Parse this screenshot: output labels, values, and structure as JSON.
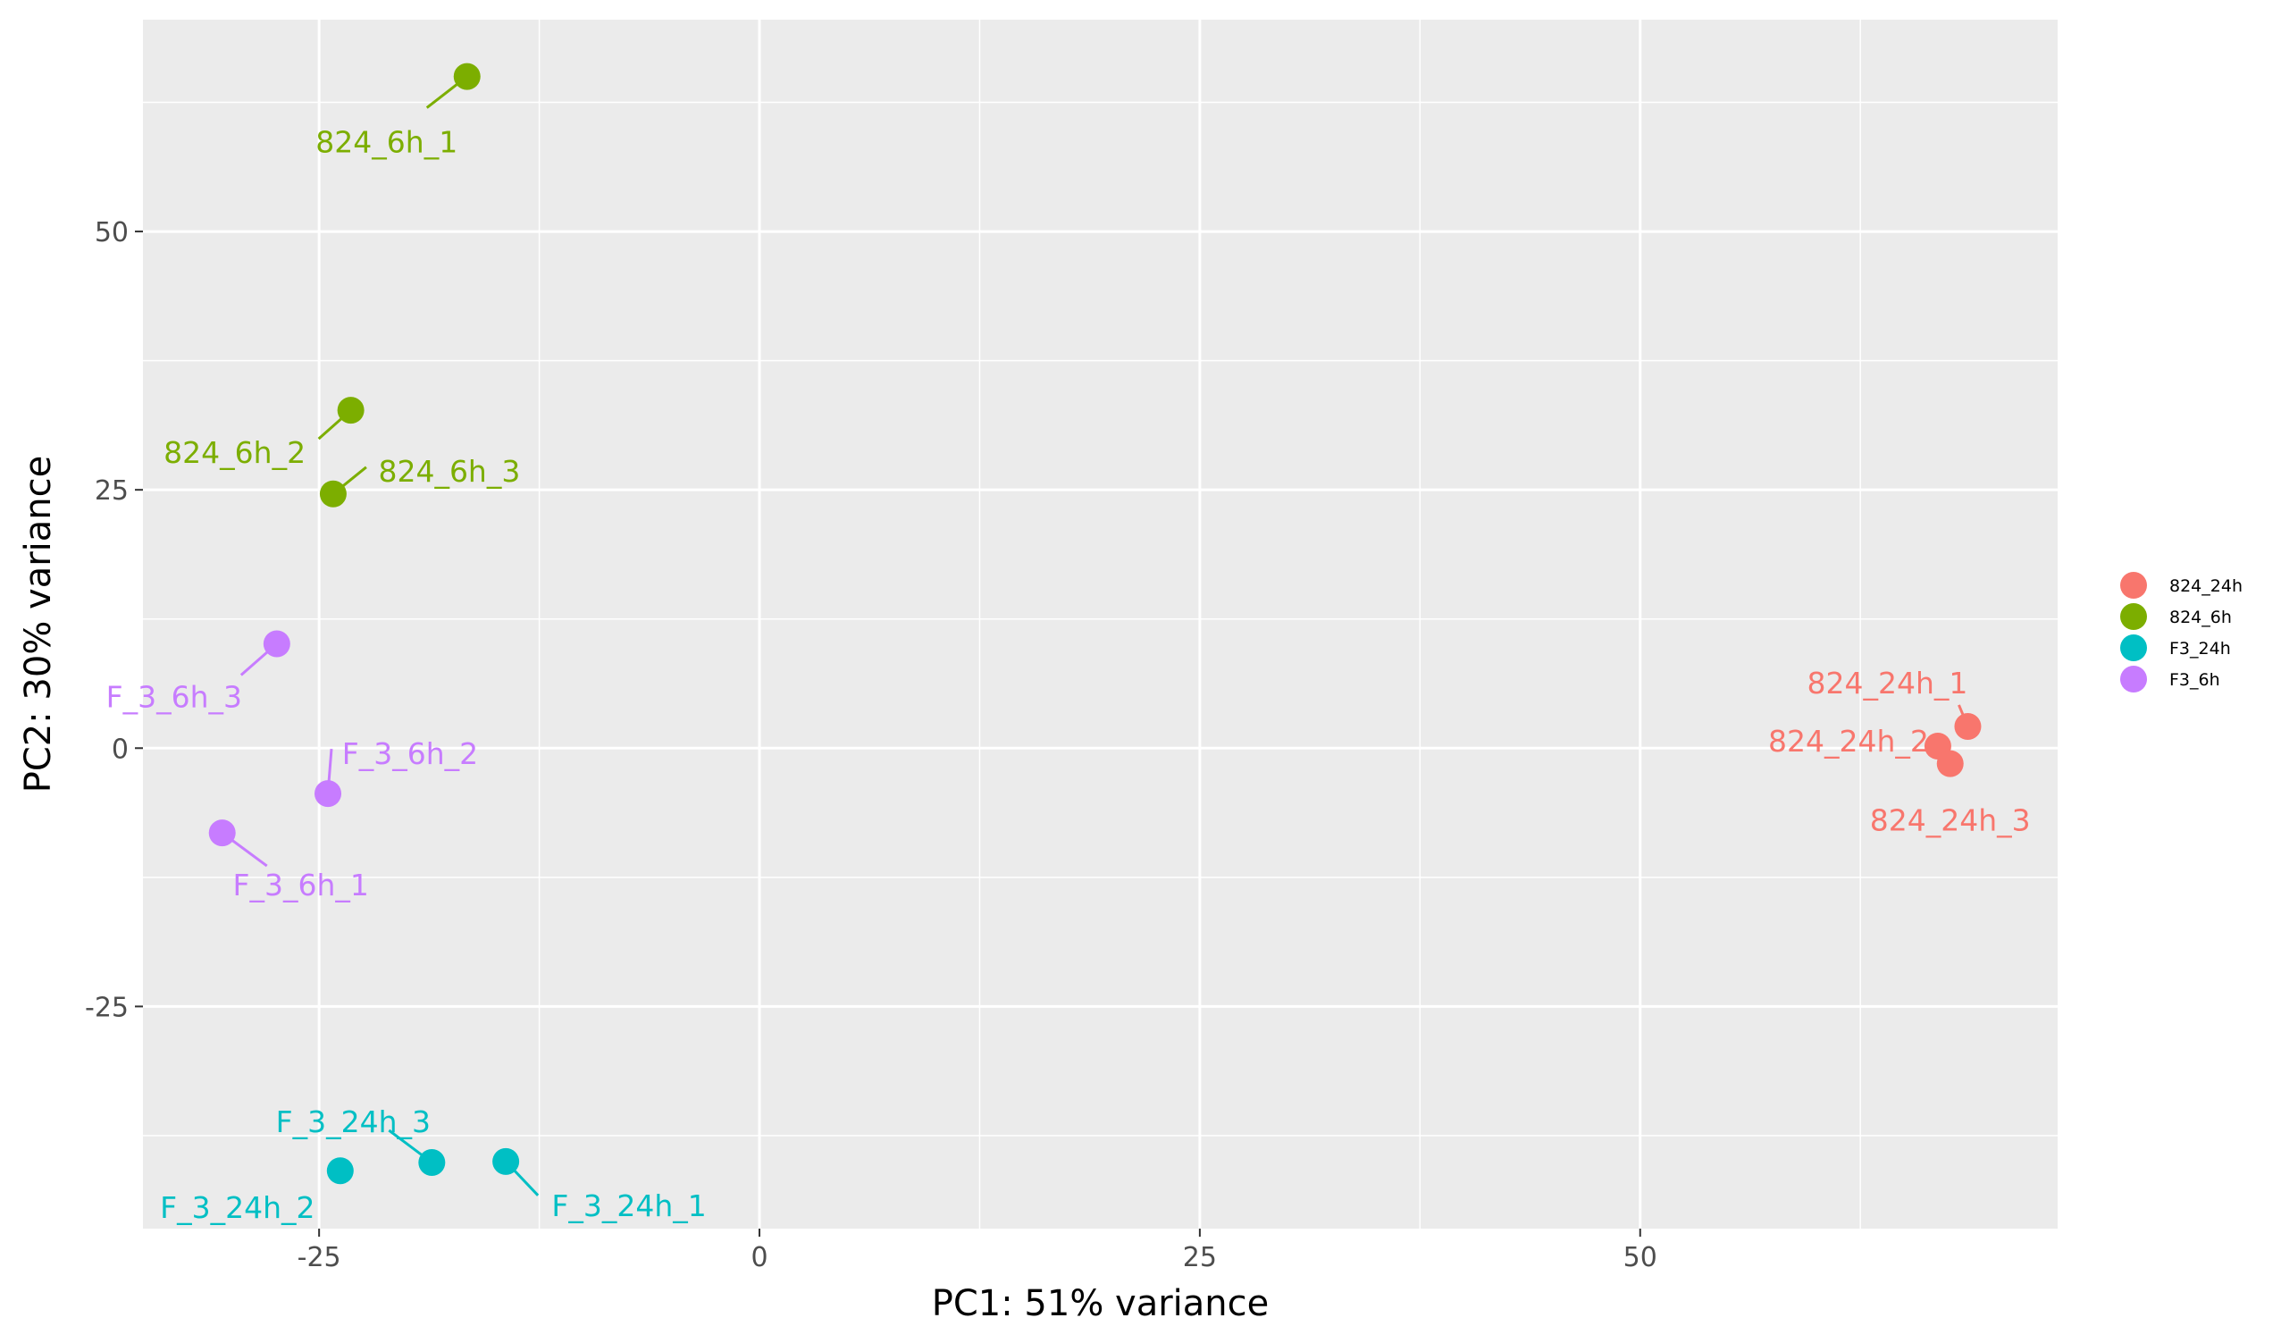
{
  "chart_data": {
    "type": "scatter",
    "title": "",
    "xlabel": "PC1: 51% variance",
    "ylabel": "PC2: 30% variance",
    "xlim": [
      -35,
      73.7
    ],
    "ylim": [
      -46.5,
      70.5
    ],
    "x_ticks": [
      -25,
      0,
      25,
      50
    ],
    "y_ticks": [
      -25,
      0,
      25,
      50
    ],
    "x_tick_labels": [
      "-25",
      "0",
      "25",
      "50"
    ],
    "y_tick_labels": [
      "-25",
      "0",
      "25",
      "50"
    ],
    "grid": true,
    "legend_position": "right",
    "series": [
      {
        "name": "824_24h",
        "color": "#F8766D",
        "points": [
          {
            "label": "824_24h_1",
            "x": 68.6,
            "y": 2.1
          },
          {
            "label": "824_24h_2",
            "x": 66.9,
            "y": 0.2
          },
          {
            "label": "824_24h_3",
            "x": 67.6,
            "y": -1.5
          }
        ]
      },
      {
        "name": "824_6h",
        "color": "#7CAE00",
        "points": [
          {
            "label": "824_6h_1",
            "x": -16.6,
            "y": 65.0
          },
          {
            "label": "824_6h_2",
            "x": -23.2,
            "y": 32.7
          },
          {
            "label": "824_6h_3",
            "x": -24.2,
            "y": 24.6
          }
        ]
      },
      {
        "name": "F3_24h",
        "color": "#00BFC4",
        "points": [
          {
            "label": "F_3_24h_1",
            "x": -14.4,
            "y": -40.0
          },
          {
            "label": "F_3_24h_2",
            "x": -23.8,
            "y": -40.9
          },
          {
            "label": "F_3_24h_3",
            "x": -18.6,
            "y": -40.1
          }
        ]
      },
      {
        "name": "F3_6h",
        "color": "#C77CFF",
        "points": [
          {
            "label": "F_3_6h_1",
            "x": -30.5,
            "y": -8.2
          },
          {
            "label": "F_3_6h_2",
            "x": -24.5,
            "y": -4.4
          },
          {
            "label": "F_3_6h_3",
            "x": -27.4,
            "y": 10.1
          }
        ]
      }
    ]
  }
}
